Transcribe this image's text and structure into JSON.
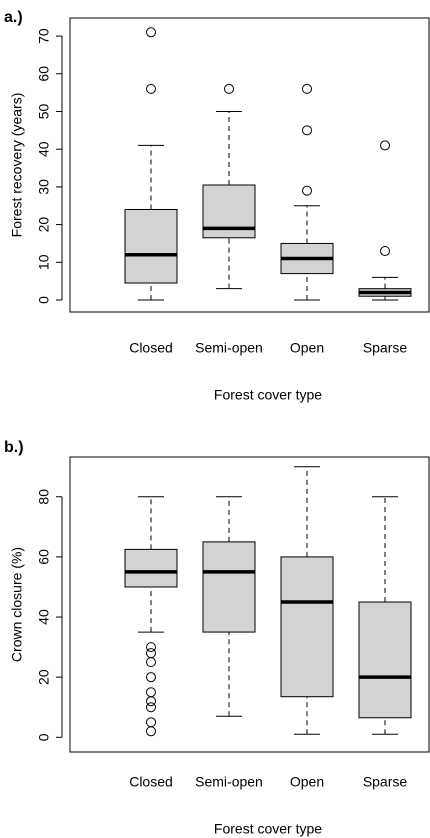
{
  "chart_data": [
    {
      "type": "box",
      "panel_label": "a.)",
      "ylabel": "Forest recovery (years)",
      "xlabel": "Forest cover type",
      "categories": [
        "Closed",
        "Semi-open",
        "Open",
        "Sparse"
      ],
      "color": "#d3d3d3",
      "boxes": [
        {
          "whislo": 0,
          "q1": 4.5,
          "med": 12,
          "q3": 24,
          "whishi": 41,
          "fliers": [
            56,
            71
          ]
        },
        {
          "whislo": 3,
          "q1": 16.5,
          "med": 19,
          "q3": 30.5,
          "whishi": 50,
          "fliers": [
            56
          ]
        },
        {
          "whislo": 0,
          "q1": 7,
          "med": 11,
          "q3": 15,
          "whishi": 25,
          "fliers": [
            29,
            45,
            56
          ]
        },
        {
          "whislo": 0,
          "q1": 1,
          "med": 2,
          "q3": 3,
          "whishi": 6,
          "fliers": [
            13,
            41
          ]
        }
      ],
      "ylim": [
        -2.84,
        73.84
      ],
      "yticks": [
        0,
        10,
        20,
        30,
        40,
        50,
        60,
        70
      ]
    },
    {
      "type": "box",
      "panel_label": "b.)",
      "ylabel": "Crown closure (%)",
      "xlabel": "Forest cover type",
      "categories": [
        "Closed",
        "Semi-open",
        "Open",
        "Sparse"
      ],
      "color": "#d3d3d3",
      "boxes": [
        {
          "whislo": 35,
          "q1": 50,
          "med": 55,
          "q3": 62.5,
          "whishi": 80,
          "fliers": [
            30,
            28,
            25,
            20,
            15,
            12,
            10,
            5,
            2
          ]
        },
        {
          "whislo": 7,
          "q1": 35,
          "med": 55,
          "q3": 65,
          "whishi": 80,
          "fliers": []
        },
        {
          "whislo": 1,
          "q1": 13.5,
          "med": 45,
          "q3": 60,
          "whishi": 90,
          "fliers": []
        },
        {
          "whislo": 1,
          "q1": 6.5,
          "med": 20,
          "q3": 45,
          "whishi": 80,
          "fliers": []
        }
      ],
      "ylim": [
        -2.56,
        93.56
      ],
      "yticks": [
        0,
        20,
        40,
        60,
        80
      ]
    }
  ]
}
